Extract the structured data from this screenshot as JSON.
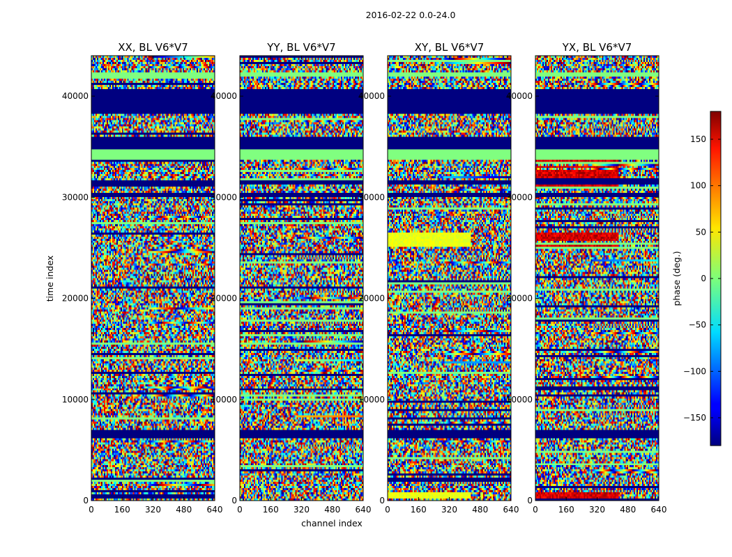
{
  "suptitle": "2016-02-22 0.0-24.0",
  "chart_data": {
    "type": "heatmap",
    "title": "2016-02-22 0.0-24.0",
    "xlabel": "channel index",
    "ylabel": "time index",
    "xlim": [
      0,
      640
    ],
    "ylim": [
      0,
      44000
    ],
    "x_ticks": [
      "0",
      "160",
      "320",
      "480",
      "640"
    ],
    "y_ticks": [
      "0",
      "10000",
      "20000",
      "30000",
      "40000"
    ],
    "panels": [
      {
        "title": "XX, BL V6*V7",
        "pol": "XX"
      },
      {
        "title": "YY, BL V6*V7",
        "pol": "YY"
      },
      {
        "title": "XY, BL V6*V7",
        "pol": "XY"
      },
      {
        "title": "YX, BL V6*V7",
        "pol": "YX"
      }
    ],
    "colorbar": {
      "label": "phase (deg.)",
      "range": [
        -180,
        180
      ],
      "ticks": [
        "150",
        "100",
        "50",
        "0",
        "−50",
        "−100",
        "−150"
      ],
      "colormap": "jet"
    },
    "flagged_time_bands": [
      [
        6200,
        6900
      ],
      [
        34800,
        36000
      ],
      [
        38200,
        40700
      ],
      [
        30000,
        30500
      ],
      [
        31200,
        31700
      ]
    ],
    "constant_zero_phase_bands": [
      [
        33800,
        34800
      ],
      [
        41900,
        42300
      ]
    ]
  }
}
